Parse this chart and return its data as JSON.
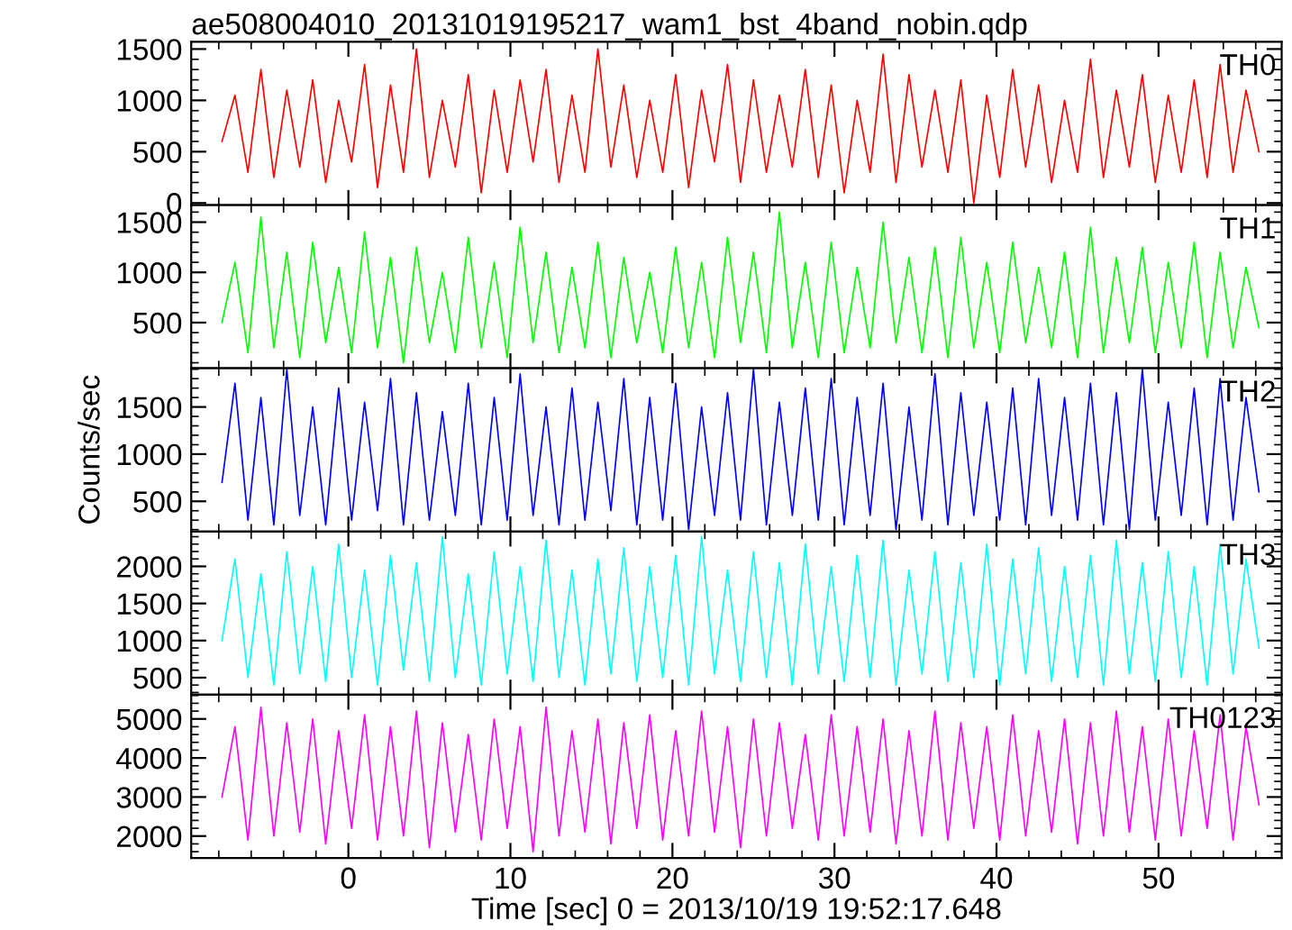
{
  "chart_data": [
    {
      "type": "line",
      "title": "ae508004010_20131019195217_wam1_bst_4band_nobin.qdp",
      "annotations": [
        "TH0"
      ],
      "xlim": [
        -9.7,
        57.6
      ],
      "xticks": [
        0,
        10,
        20,
        30,
        40,
        50
      ],
      "ylim": [
        -20,
        1570
      ],
      "yticks": [
        0,
        500,
        1000,
        1500
      ],
      "tick_labels": "y",
      "x": [
        -7.8,
        -7.0,
        -6.2,
        -5.4,
        -4.6,
        -3.8,
        -3.0,
        -2.2,
        -1.4,
        -0.6,
        0.2,
        1,
        1.8,
        2.6,
        3.4,
        4.2,
        5,
        5.8,
        6.6,
        7.4,
        8.2,
        9,
        9.8,
        10.6,
        11.4,
        12.2,
        13,
        13.8,
        14.6,
        15.4,
        16.2,
        17,
        17.8,
        18.6,
        19.4,
        20.2,
        21,
        21.8,
        22.6,
        23.4,
        24.2,
        25,
        25.8,
        26.6,
        27.4,
        28.2,
        29,
        29.8,
        30.6,
        31.4,
        32.2,
        33,
        33.8,
        34.6,
        35.4,
        36.2,
        37,
        37.8,
        38.6,
        39.4,
        40.2,
        41,
        41.8,
        42.6,
        43.4,
        44.2,
        45,
        45.8,
        46.6,
        47.4,
        48.2,
        49,
        49.8,
        50.6,
        51.4,
        52.2,
        53,
        53.8,
        54.6,
        55.4,
        56.2
      ],
      "series": [
        {
          "color": "#ff0000",
          "values": [
            600,
            1050,
            300,
            1300,
            250,
            1100,
            350,
            1200,
            200,
            1000,
            400,
            1350,
            150,
            1150,
            300,
            1500,
            250,
            1000,
            350,
            1250,
            100,
            1100,
            300,
            1200,
            400,
            1300,
            200,
            1050,
            300,
            1500,
            350,
            1150,
            250,
            1000,
            300,
            1250,
            150,
            1100,
            400,
            1350,
            200,
            1200,
            300,
            1050,
            350,
            1300,
            250,
            1150,
            100,
            1000,
            300,
            1450,
            200,
            1250,
            350,
            1100,
            300,
            1200,
            0,
            1050,
            250,
            1300,
            350,
            1150,
            200,
            1000,
            300,
            1400,
            250,
            1100,
            350,
            1250,
            200,
            1050,
            300,
            1200,
            250,
            1350,
            300,
            1100,
            500
          ]
        }
      ]
    },
    {
      "type": "line",
      "annotations": [
        "TH1"
      ],
      "xlim": [
        -9.7,
        57.6
      ],
      "xticks": [
        0,
        10,
        20,
        30,
        40,
        50
      ],
      "ylim": [
        45,
        1670
      ],
      "yticks": [
        500,
        1000,
        1500
      ],
      "tick_labels": "y",
      "x": [
        -7.8,
        -7.0,
        -6.2,
        -5.4,
        -4.6,
        -3.8,
        -3.0,
        -2.2,
        -1.4,
        -0.6,
        0.2,
        1,
        1.8,
        2.6,
        3.4,
        4.2,
        5,
        5.8,
        6.6,
        7.4,
        8.2,
        9,
        9.8,
        10.6,
        11.4,
        12.2,
        13,
        13.8,
        14.6,
        15.4,
        16.2,
        17,
        17.8,
        18.6,
        19.4,
        20.2,
        21,
        21.8,
        22.6,
        23.4,
        24.2,
        25,
        25.8,
        26.6,
        27.4,
        28.2,
        29,
        29.8,
        30.6,
        31.4,
        32.2,
        33,
        33.8,
        34.6,
        35.4,
        36.2,
        37,
        37.8,
        38.6,
        39.4,
        40.2,
        41,
        41.8,
        42.6,
        43.4,
        44.2,
        45,
        45.8,
        46.6,
        47.4,
        48.2,
        49,
        49.8,
        50.6,
        51.4,
        52.2,
        53,
        53.8,
        54.6,
        55.4,
        56.2
      ],
      "series": [
        {
          "color": "#00ff00",
          "values": [
            500,
            1100,
            200,
            1550,
            250,
            1200,
            150,
            1300,
            300,
            1050,
            200,
            1400,
            250,
            1150,
            100,
            1250,
            300,
            1000,
            200,
            1350,
            250,
            1100,
            150,
            1450,
            300,
            1200,
            200,
            1050,
            250,
            1300,
            150,
            1150,
            300,
            1000,
            200,
            1250,
            250,
            1100,
            150,
            1350,
            300,
            1200,
            200,
            1600,
            250,
            1100,
            150,
            1300,
            200,
            1050,
            250,
            1500,
            300,
            1150,
            200,
            1250,
            150,
            1350,
            250,
            1100,
            200,
            1300,
            300,
            1050,
            250,
            1200,
            150,
            1450,
            200,
            1150,
            300,
            1250,
            200,
            1100,
            250,
            1300,
            150,
            1200,
            250,
            1050,
            450
          ]
        }
      ]
    },
    {
      "type": "line",
      "annotations": [
        "TH2"
      ],
      "ylabel": "Counts/sec",
      "xlim": [
        -9.7,
        57.6
      ],
      "xticks": [
        0,
        10,
        20,
        30,
        40,
        50
      ],
      "ylim": [
        180,
        1910
      ],
      "yticks": [
        500,
        1000,
        1500
      ],
      "tick_labels": "y",
      "x": [
        -7.8,
        -7.0,
        -6.2,
        -5.4,
        -4.6,
        -3.8,
        -3.0,
        -2.2,
        -1.4,
        -0.6,
        0.2,
        1,
        1.8,
        2.6,
        3.4,
        4.2,
        5,
        5.8,
        6.6,
        7.4,
        8.2,
        9,
        9.8,
        10.6,
        11.4,
        12.2,
        13,
        13.8,
        14.6,
        15.4,
        16.2,
        17,
        17.8,
        18.6,
        19.4,
        20.2,
        21,
        21.8,
        22.6,
        23.4,
        24.2,
        25,
        25.8,
        26.6,
        27.4,
        28.2,
        29,
        29.8,
        30.6,
        31.4,
        32.2,
        33,
        33.8,
        34.6,
        35.4,
        36.2,
        37,
        37.8,
        38.6,
        39.4,
        40.2,
        41,
        41.8,
        42.6,
        43.4,
        44.2,
        45,
        45.8,
        46.6,
        47.4,
        48.2,
        49,
        49.8,
        50.6,
        51.4,
        52.2,
        53,
        53.8,
        54.6,
        55.4,
        56.2
      ],
      "series": [
        {
          "color": "#0000ff",
          "values": [
            700,
            1750,
            300,
            1600,
            250,
            1900,
            350,
            1500,
            250,
            1700,
            300,
            1550,
            400,
            1800,
            250,
            1650,
            300,
            1450,
            350,
            1750,
            250,
            1600,
            300,
            1850,
            350,
            1500,
            250,
            1700,
            300,
            1550,
            400,
            1800,
            250,
            1600,
            300,
            1750,
            200,
            1500,
            350,
            1650,
            300,
            1900,
            250,
            1550,
            350,
            1700,
            300,
            1800,
            250,
            1600,
            350,
            1750,
            200,
            1500,
            300,
            1850,
            250,
            1650,
            350,
            1550,
            300,
            1700,
            250,
            1800,
            350,
            1600,
            300,
            1750,
            250,
            1650,
            200,
            1900,
            300,
            1550,
            350,
            1700,
            250,
            1800,
            300,
            1600,
            600
          ]
        }
      ]
    },
    {
      "type": "line",
      "annotations": [
        "TH3"
      ],
      "xlim": [
        -9.7,
        57.6
      ],
      "xticks": [
        0,
        10,
        20,
        30,
        40,
        50
      ],
      "ylim": [
        270,
        2470
      ],
      "yticks": [
        500,
        1000,
        1500,
        2000
      ],
      "tick_labels": "y",
      "x": [
        -7.8,
        -7.0,
        -6.2,
        -5.4,
        -4.6,
        -3.8,
        -3.0,
        -2.2,
        -1.4,
        -0.6,
        0.2,
        1,
        1.8,
        2.6,
        3.4,
        4.2,
        5,
        5.8,
        6.6,
        7.4,
        8.2,
        9,
        9.8,
        10.6,
        11.4,
        12.2,
        13,
        13.8,
        14.6,
        15.4,
        16.2,
        17,
        17.8,
        18.6,
        19.4,
        20.2,
        21,
        21.8,
        22.6,
        23.4,
        24.2,
        25,
        25.8,
        26.6,
        27.4,
        28.2,
        29,
        29.8,
        30.6,
        31.4,
        32.2,
        33,
        33.8,
        34.6,
        35.4,
        36.2,
        37,
        37.8,
        38.6,
        39.4,
        40.2,
        41,
        41.8,
        42.6,
        43.4,
        44.2,
        45,
        45.8,
        46.6,
        47.4,
        48.2,
        49,
        49.8,
        50.6,
        51.4,
        52.2,
        53,
        53.8,
        54.6,
        55.4,
        56.2
      ],
      "series": [
        {
          "color": "#00ffff",
          "values": [
            1000,
            2100,
            500,
            1900,
            400,
            2200,
            550,
            2000,
            450,
            2300,
            500,
            1950,
            400,
            2150,
            600,
            2050,
            450,
            2400,
            500,
            1900,
            400,
            2200,
            550,
            2000,
            450,
            2350,
            500,
            1950,
            400,
            2100,
            550,
            2250,
            450,
            2000,
            500,
            2150,
            400,
            2400,
            550,
            1950,
            450,
            2200,
            500,
            2050,
            400,
            2300,
            550,
            2000,
            450,
            2150,
            500,
            2350,
            400,
            1950,
            550,
            2200,
            450,
            2050,
            500,
            2300,
            400,
            2100,
            550,
            2250,
            450,
            2000,
            500,
            2150,
            400,
            2350,
            550,
            2050,
            450,
            2200,
            500,
            2000,
            400,
            2300,
            550,
            2100,
            900
          ]
        }
      ]
    },
    {
      "type": "line",
      "annotations": [
        "TH0123"
      ],
      "xlabel": "Time [sec] 0 = 2013/10/19 19:52:17.648",
      "xlim": [
        -9.7,
        57.6
      ],
      "xticks": [
        0,
        10,
        20,
        30,
        40,
        50
      ],
      "ylim": [
        1440,
        5620
      ],
      "yticks": [
        2000,
        3000,
        4000,
        5000
      ],
      "x": [
        -7.8,
        -7.0,
        -6.2,
        -5.4,
        -4.6,
        -3.8,
        -3.0,
        -2.2,
        -1.4,
        -0.6,
        0.2,
        1,
        1.8,
        2.6,
        3.4,
        4.2,
        5,
        5.8,
        6.6,
        7.4,
        8.2,
        9,
        9.8,
        10.6,
        11.4,
        12.2,
        13,
        13.8,
        14.6,
        15.4,
        16.2,
        17,
        17.8,
        18.6,
        19.4,
        20.2,
        21,
        21.8,
        22.6,
        23.4,
        24.2,
        25,
        25.8,
        26.6,
        27.4,
        28.2,
        29,
        29.8,
        30.6,
        31.4,
        32.2,
        33,
        33.8,
        34.6,
        35.4,
        36.2,
        37,
        37.8,
        38.6,
        39.4,
        40.2,
        41,
        41.8,
        42.6,
        43.4,
        44.2,
        45,
        45.8,
        46.6,
        47.4,
        48.2,
        49,
        49.8,
        50.6,
        51.4,
        52.2,
        53,
        53.8,
        54.6,
        55.4,
        56.2
      ],
      "series": [
        {
          "color": "#ff00ff",
          "values": [
            3000,
            4800,
            1900,
            5300,
            2000,
            4900,
            2100,
            5000,
            1800,
            4700,
            2200,
            5100,
            1900,
            4800,
            2000,
            5200,
            1700,
            4900,
            2100,
            4600,
            1900,
            5000,
            2200,
            4800,
            1600,
            5300,
            2000,
            4700,
            2100,
            5000,
            1800,
            4900,
            2200,
            5100,
            1900,
            4700,
            2000,
            5200,
            2100,
            4800,
            1700,
            5000,
            2000,
            4900,
            2200,
            4600,
            1900,
            5100,
            2000,
            4800,
            2100,
            5000,
            1800,
            4700,
            2000,
            5200,
            1900,
            4900,
            2200,
            4800,
            1900,
            5100,
            2000,
            4700,
            2100,
            5000,
            1800,
            4900,
            2000,
            5200,
            2100,
            4800,
            1900,
            5000,
            2000,
            4700,
            2200,
            5100,
            1900,
            4800,
            2800
          ]
        }
      ]
    }
  ]
}
